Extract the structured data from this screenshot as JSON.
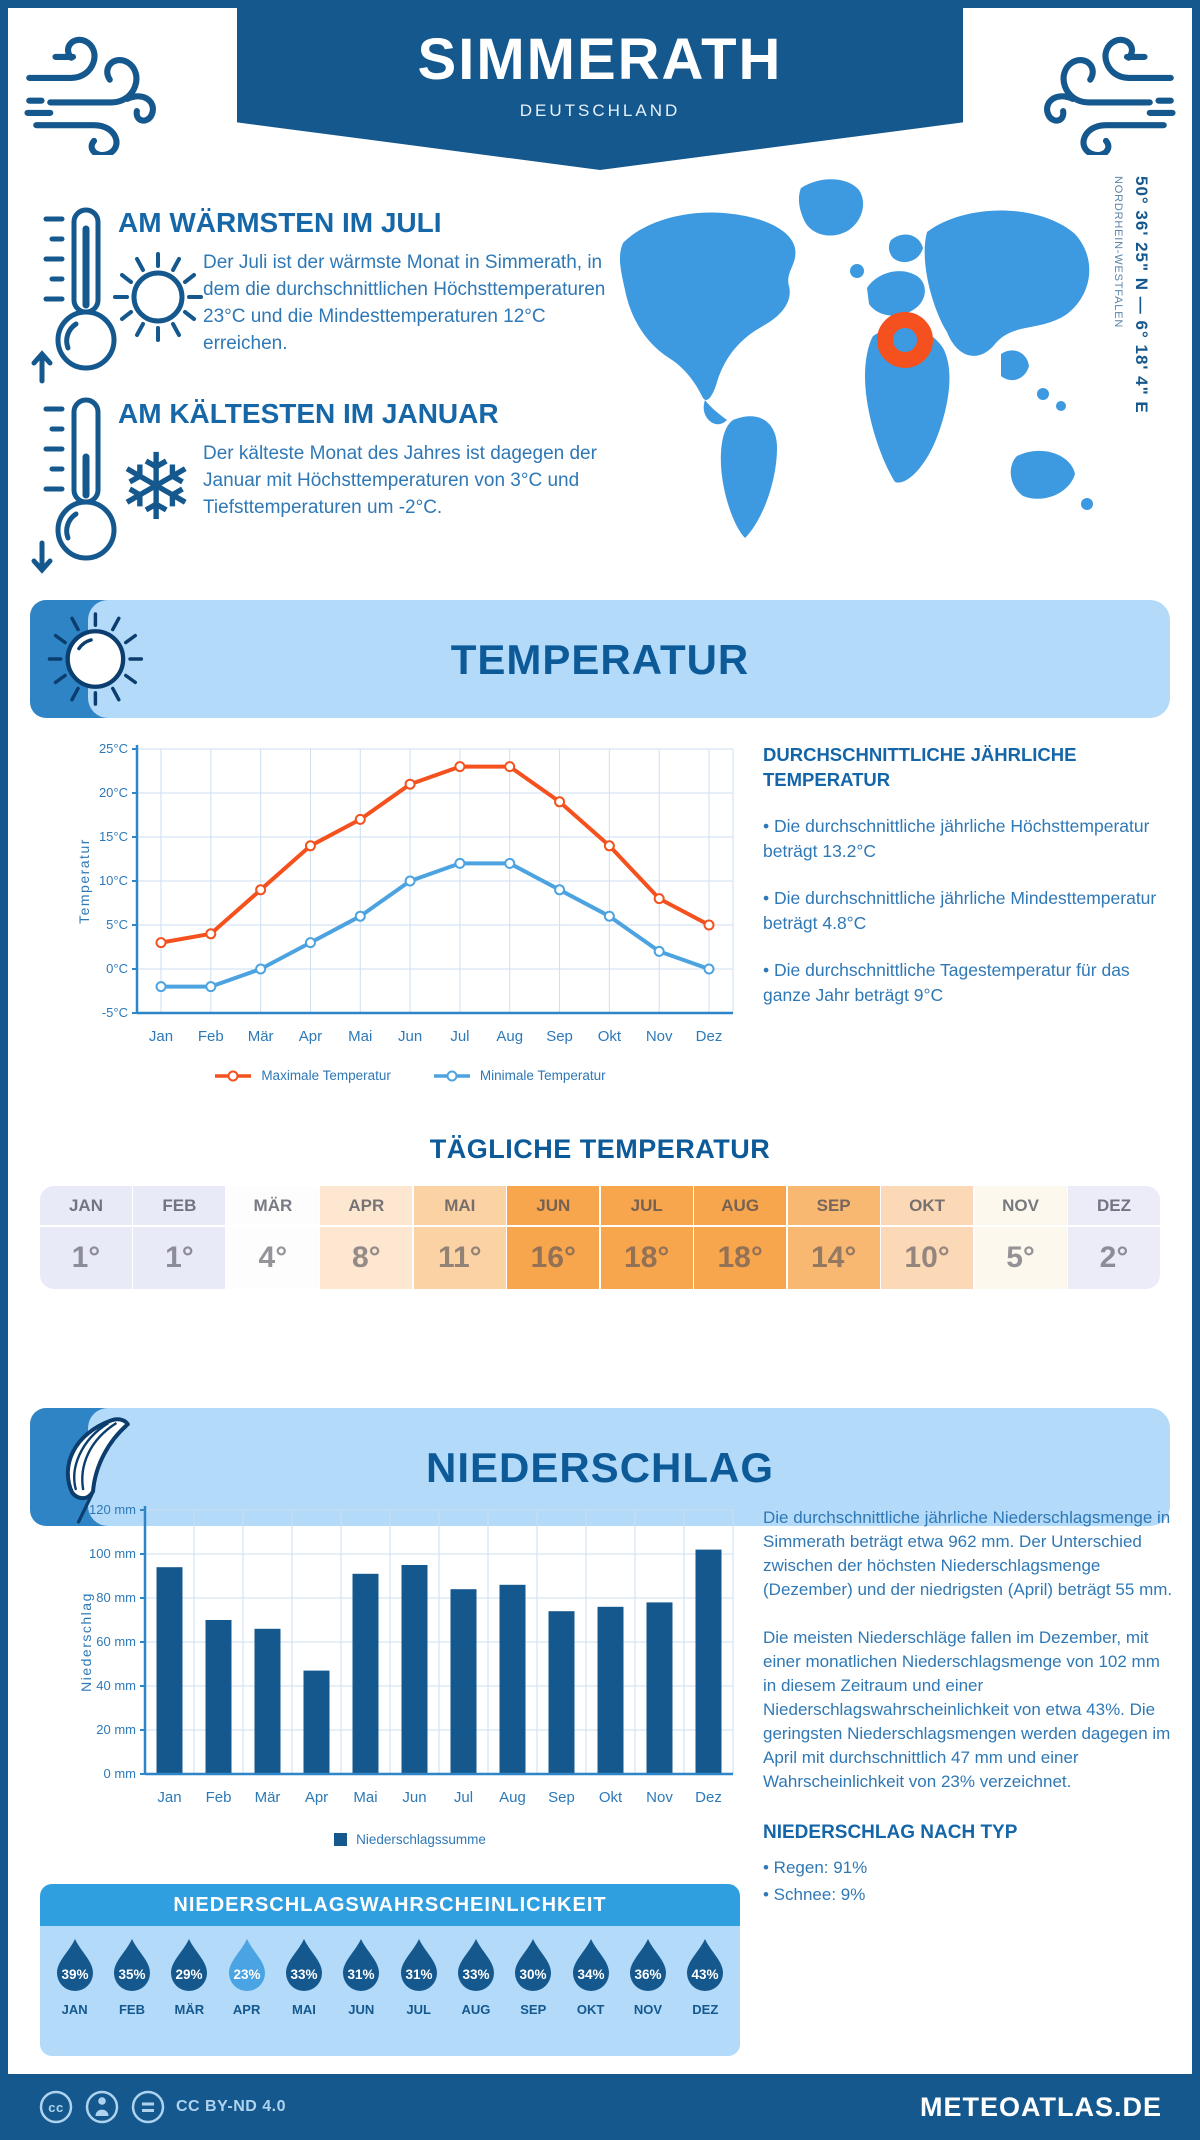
{
  "header": {
    "title": "SIMMERATH",
    "subtitle": "DEUTSCHLAND"
  },
  "location": {
    "coordinates": "50° 36' 25\" N — 6° 18' 4\" E",
    "region": "NORDRHEIN-WESTFALEN"
  },
  "highlights": [
    {
      "title": "AM WÄRMSTEN IM JULI",
      "text": "Der Juli ist der wärmste Monat in Simmerath, in dem die durchschnittlichen Höchsttemperaturen 23°C und die Mindesttemperaturen 12°C erreichen."
    },
    {
      "title": "AM KÄLTESTEN IM JANUAR",
      "text": "Der kälteste Monat des Jahres ist dagegen der Januar mit Höchsttemperaturen von 3°C und Tiefsttemperaturen um -2°C."
    }
  ],
  "temperature": {
    "banner": "TEMPERATUR",
    "summary_title": "DURCHSCHNITTLICHE JÄHRLICHE TEMPERATUR",
    "bullets": [
      "• Die durchschnittliche jährliche Höchsttemperatur beträgt 13.2°C",
      "• Die durchschnittliche jährliche Mindesttemperatur beträgt 4.8°C",
      "• Die durchschnittliche Tagestemperatur für das ganze Jahr beträgt 9°C"
    ],
    "daily_title": "TÄGLICHE TEMPERATUR",
    "daily_months": [
      "JAN",
      "FEB",
      "MÄR",
      "APR",
      "MAI",
      "JUN",
      "JUL",
      "AUG",
      "SEP",
      "OKT",
      "NOV",
      "DEZ"
    ],
    "daily_values": [
      "1°",
      "1°",
      "4°",
      "8°",
      "11°",
      "16°",
      "18°",
      "18°",
      "14°",
      "10°",
      "5°",
      "2°"
    ],
    "daily_colors": [
      "#e9eaf8",
      "#e9eaf8",
      "#fdfdfd",
      "#fde7d0",
      "#fbd2a4",
      "#f7a64e",
      "#f7a64e",
      "#f7a64e",
      "#f9b871",
      "#fcd9b6",
      "#fdf8ee",
      "#ebecf8"
    ]
  },
  "precipitation": {
    "banner": "NIEDERSCHLAG",
    "paragraphs": [
      "Die durchschnittliche jährliche Niederschlagsmenge in Simmerath beträgt etwa 962 mm. Der Unterschied zwischen der höchsten Niederschlagsmenge (Dezember) und der niedrigsten (April) beträgt 55 mm.",
      "Die meisten Niederschläge fallen im Dezember, mit einer monatlichen Niederschlagsmenge von 102 mm in diesem Zeitraum und einer Niederschlagswahrscheinlichkeit von etwa 43%. Die geringsten Niederschlagsmengen werden dagegen im April mit durchschnittlich 47 mm und einer Wahrscheinlichkeit von 23% verzeichnet."
    ],
    "type_title": "NIEDERSCHLAG NACH TYP",
    "type_bullets": [
      "• Regen: 91%",
      "• Schnee: 9%"
    ],
    "probability": {
      "title": "NIEDERSCHLAGSWAHRSCHEINLICHKEIT",
      "months": [
        "JAN",
        "FEB",
        "MÄR",
        "APR",
        "MAI",
        "JUN",
        "JUL",
        "AUG",
        "SEP",
        "OKT",
        "NOV",
        "DEZ"
      ],
      "values": [
        "39%",
        "35%",
        "29%",
        "23%",
        "33%",
        "31%",
        "31%",
        "33%",
        "30%",
        "34%",
        "36%",
        "43%"
      ],
      "highlight_month": "APR",
      "highlight_index": 3
    }
  },
  "footer": {
    "license": "CC BY-ND 4.0",
    "site": "METEOATLAS.DE"
  },
  "icons": [
    "wind-icon",
    "thermometer-up-icon",
    "sun-icon",
    "thermometer-down-icon",
    "snowflake-icon",
    "map-marker-ring-icon",
    "banner-sun-icon",
    "umbrella-icon",
    "raindrop-icon",
    "cc-icon",
    "cc-by-icon",
    "cc-nd-icon"
  ],
  "colors": {
    "primary_dark": "#15588e",
    "heading_blue": "#0d5a99",
    "text_blue": "#2f78b6",
    "map_blue": "#3d9ae0",
    "banner_light": "#b3daf8",
    "banner_accent": "#2e84c4",
    "probability_header": "#309fe0",
    "max_line": "#f4511e",
    "min_line": "#4da3e0",
    "bar_blue": "#15588e",
    "grid": "#cddff0",
    "drop_highlight": "#4aa3e2"
  },
  "chart_data": [
    {
      "type": "line",
      "title": "Temperatur",
      "categories": [
        "Jan",
        "Feb",
        "Mär",
        "Apr",
        "Mai",
        "Jun",
        "Jul",
        "Aug",
        "Sep",
        "Okt",
        "Nov",
        "Dez"
      ],
      "series": [
        {
          "name": "Maximale Temperatur",
          "color": "#f4511e",
          "values": [
            3,
            4,
            9,
            14,
            17,
            21,
            23,
            23,
            19,
            14,
            8,
            5
          ]
        },
        {
          "name": "Minimale Temperatur",
          "color": "#4da3e0",
          "values": [
            -2,
            -2,
            0,
            3,
            6,
            10,
            12,
            12,
            9,
            6,
            2,
            0
          ]
        }
      ],
      "xlabel": "",
      "ylabel": "Temperatur",
      "ylim": [
        -5,
        25
      ],
      "ytick_step": 5,
      "ytick_suffix": "°C",
      "ytick_labels": [
        "-5°C",
        "0°C",
        "5°C",
        "10°C",
        "15°C",
        "20°C",
        "25°C"
      ],
      "grid": true,
      "legend_position": "bottom"
    },
    {
      "type": "bar",
      "title": "Niederschlag",
      "categories": [
        "Jan",
        "Feb",
        "Mär",
        "Apr",
        "Mai",
        "Jun",
        "Jul",
        "Aug",
        "Sep",
        "Okt",
        "Nov",
        "Dez"
      ],
      "series": [
        {
          "name": "Niederschlagssumme",
          "color": "#15588e",
          "values": [
            94,
            70,
            66,
            47,
            91,
            95,
            84,
            86,
            74,
            76,
            78,
            102
          ]
        }
      ],
      "xlabel": "",
      "ylabel": "Niederschlag",
      "ylim": [
        0,
        120
      ],
      "ytick_step": 20,
      "ytick_suffix": " mm",
      "ytick_labels": [
        "0 mm",
        "20 mm",
        "40 mm",
        "60 mm",
        "80 mm",
        "100 mm",
        "120 mm"
      ],
      "grid": true,
      "legend_position": "bottom"
    }
  ]
}
